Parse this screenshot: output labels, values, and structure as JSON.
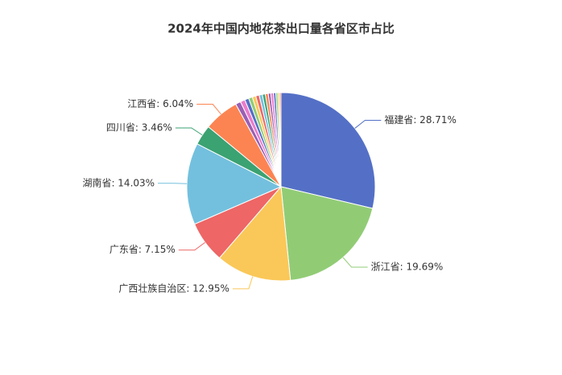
{
  "chart_data": {
    "type": "pie",
    "title": "2024年中国内地花茶出口量各省区市占比",
    "categories": [
      "福建省: 28.71%",
      "浙江省: 19.69%",
      "广西壮族自治区: 12.95%",
      "广东省: 7.15%",
      "湖南省: 14.03%",
      "四川省: 3.46%",
      "江西省: 6.04%",
      null,
      null,
      null,
      null,
      null,
      null,
      null,
      null,
      null,
      null,
      null,
      null,
      null,
      null,
      null
    ],
    "values": [
      28.71,
      19.69,
      12.95,
      7.15,
      14.03,
      3.46,
      6.04,
      0.9,
      0.8,
      0.7,
      0.65,
      0.6,
      0.6,
      0.55,
      0.5,
      0.5,
      0.45,
      0.45,
      0.4,
      0.35,
      0.3,
      0.23
    ],
    "colors": [
      "#5470c6",
      "#91cc75",
      "#fac858",
      "#ee6666",
      "#73c0de",
      "#3ba272",
      "#fc8452",
      "#9a60b4",
      "#ea7ccc",
      "#5470c6",
      "#91cc75",
      "#fac858",
      "#ee6666",
      "#73c0de",
      "#3ba272",
      "#fc8452",
      "#9a60b4",
      "#ea7ccc",
      "#5470c6",
      "#91cc75",
      "#fac858",
      "#ee6666"
    ]
  }
}
